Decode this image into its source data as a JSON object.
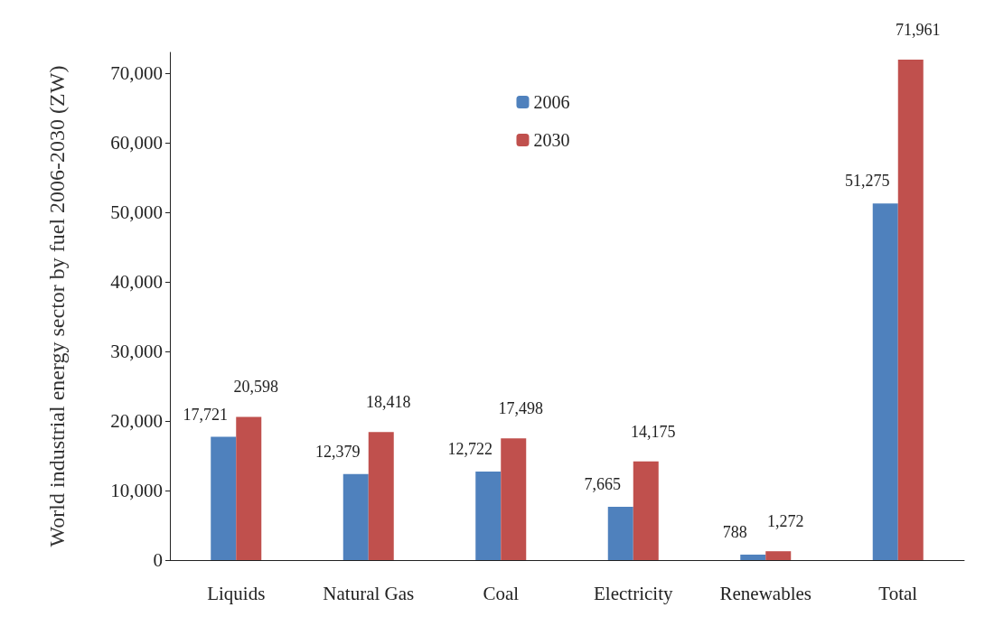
{
  "chart_data": {
    "type": "bar",
    "ylabel": "World industrial energy sector by fuel 2006-2030 (ZW)",
    "categories": [
      "Liquids",
      "Natural Gas",
      "Coal",
      "Electricity",
      "Renewables",
      "Total"
    ],
    "series": [
      {
        "name": "2006",
        "color": "#4f81bd",
        "values": [
          17721,
          12379,
          12722,
          7665,
          788,
          51275
        ],
        "value_labels": [
          "17,721",
          "12,379",
          "12,722",
          "7,665",
          "788",
          "51,275"
        ]
      },
      {
        "name": "2030",
        "color": "#c0504d",
        "values": [
          20598,
          18418,
          17498,
          14175,
          1272,
          71961
        ],
        "value_labels": [
          "20,598",
          "18,418",
          "17,498",
          "14,175",
          "1,272",
          "71,961"
        ]
      }
    ],
    "ylim": [
      0,
      73000
    ],
    "yticks": [
      0,
      {
        "value": 10000,
        "label": "10,000"
      },
      {
        "value": 20000,
        "label": "20,000"
      },
      {
        "value": 30000,
        "label": "30,000"
      },
      {
        "value": 40000,
        "label": "40,000"
      },
      {
        "value": 50000,
        "label": "50,000"
      },
      {
        "value": 60000,
        "label": "60,000"
      },
      {
        "value": 70000,
        "label": "70,000"
      }
    ],
    "grid": false,
    "legend": "top"
  }
}
